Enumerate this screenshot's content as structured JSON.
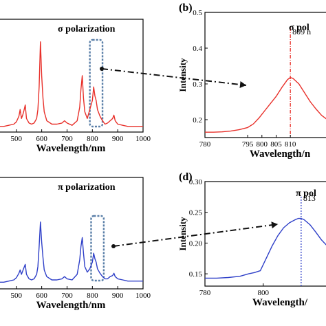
{
  "chart_data": [
    {
      "type": "line",
      "panel": "a",
      "label": "",
      "annotation": "σ  polarization",
      "xlabel": "Wavelength/nm",
      "ylabel": "",
      "xlim": [
        430,
        1000
      ],
      "ylim": [
        0,
        1
      ],
      "xticks": [
        "500",
        "600",
        "700",
        "800",
        "900",
        "1000"
      ],
      "xtick_values": [
        500,
        600,
        700,
        800,
        900,
        1000
      ],
      "color": "#e8302a",
      "highlight_range": [
        790,
        840
      ],
      "x": [
        430,
        450,
        470,
        490,
        500,
        510,
        515,
        520,
        525,
        530,
        535,
        540,
        550,
        560,
        570,
        580,
        585,
        590,
        595,
        600,
        605,
        610,
        620,
        640,
        660,
        680,
        690,
        700,
        720,
        740,
        750,
        755,
        760,
        765,
        770,
        780,
        790,
        800,
        805,
        810,
        815,
        820,
        830,
        840,
        850,
        860,
        870,
        880,
        885,
        890,
        900,
        920,
        940,
        960,
        980,
        1000
      ],
      "y": [
        0.05,
        0.05,
        0.06,
        0.07,
        0.09,
        0.14,
        0.2,
        0.12,
        0.15,
        0.19,
        0.24,
        0.12,
        0.08,
        0.07,
        0.08,
        0.12,
        0.2,
        0.4,
        0.8,
        0.5,
        0.3,
        0.18,
        0.1,
        0.07,
        0.07,
        0.08,
        0.1,
        0.08,
        0.06,
        0.1,
        0.22,
        0.38,
        0.5,
        0.3,
        0.18,
        0.12,
        0.2,
        0.28,
        0.4,
        0.32,
        0.28,
        0.2,
        0.14,
        0.1,
        0.07,
        0.08,
        0.1,
        0.12,
        0.15,
        0.1,
        0.07,
        0.06,
        0.05,
        0.05,
        0.05,
        0.05
      ]
    },
    {
      "type": "line",
      "panel": "b",
      "label": "(b)",
      "annotation": "σ  pol",
      "marker_label": "809 n",
      "marker_x": 810,
      "xlabel": "Wavelength/n",
      "ylabel": "Intensity",
      "xlim": [
        780,
        823
      ],
      "ylim": [
        0.15,
        0.5
      ],
      "xticks": [
        "780",
        "795",
        "800",
        "805",
        "810"
      ],
      "xtick_values": [
        780,
        795,
        800,
        805,
        810
      ],
      "yticks": [
        "0.2",
        "0.3",
        "0.4",
        "0.5"
      ],
      "ytick_values": [
        0.2,
        0.3,
        0.4,
        0.5
      ],
      "color": "#e8302a",
      "x": [
        780,
        783,
        786,
        789,
        792,
        795,
        797,
        799,
        801,
        803,
        805,
        807,
        809,
        810,
        811,
        813,
        815,
        817,
        819,
        821,
        823
      ],
      "y": [
        0.165,
        0.165,
        0.166,
        0.168,
        0.172,
        0.178,
        0.188,
        0.205,
        0.225,
        0.245,
        0.265,
        0.29,
        0.312,
        0.318,
        0.315,
        0.3,
        0.275,
        0.25,
        0.23,
        0.212,
        0.2
      ]
    },
    {
      "type": "line",
      "panel": "c",
      "label": "",
      "annotation": "π  polarization",
      "xlabel": "Wavelength/nm",
      "ylabel": "",
      "xlim": [
        430,
        1000
      ],
      "ylim": [
        0,
        1
      ],
      "xticks": [
        "500",
        "600",
        "700",
        "800",
        "900",
        "1000"
      ],
      "xtick_values": [
        500,
        600,
        700,
        800,
        900,
        1000
      ],
      "color": "#2e3fc8",
      "highlight_range": [
        795,
        845
      ],
      "x": [
        430,
        450,
        470,
        490,
        500,
        510,
        515,
        520,
        525,
        530,
        535,
        540,
        550,
        560,
        570,
        580,
        585,
        590,
        595,
        600,
        605,
        610,
        620,
        640,
        660,
        680,
        690,
        700,
        720,
        740,
        750,
        755,
        760,
        765,
        770,
        780,
        790,
        800,
        805,
        810,
        815,
        820,
        830,
        840,
        850,
        860,
        870,
        880,
        885,
        890,
        900,
        920,
        940,
        960,
        980,
        1000
      ],
      "y": [
        0.06,
        0.06,
        0.07,
        0.08,
        0.1,
        0.14,
        0.17,
        0.13,
        0.16,
        0.19,
        0.22,
        0.13,
        0.09,
        0.08,
        0.09,
        0.13,
        0.2,
        0.38,
        0.6,
        0.42,
        0.28,
        0.17,
        0.11,
        0.08,
        0.08,
        0.09,
        0.11,
        0.09,
        0.08,
        0.13,
        0.26,
        0.38,
        0.46,
        0.32,
        0.2,
        0.15,
        0.18,
        0.24,
        0.32,
        0.27,
        0.24,
        0.18,
        0.14,
        0.11,
        0.09,
        0.09,
        0.11,
        0.12,
        0.14,
        0.11,
        0.09,
        0.08,
        0.07,
        0.07,
        0.07,
        0.07
      ]
    },
    {
      "type": "line",
      "panel": "d",
      "label": "(d)",
      "annotation": "π  pol",
      "marker_label": "813",
      "marker_x": 813,
      "xlabel": "Wavelength/",
      "ylabel": "Intensity",
      "xlim": [
        780,
        822
      ],
      "ylim": [
        0.13,
        0.3
      ],
      "xticks": [
        "780",
        "800"
      ],
      "xtick_values": [
        780,
        800
      ],
      "yticks": [
        "0.15",
        "0.20",
        "0.25",
        "0.30"
      ],
      "ytick_values": [
        0.15,
        0.2,
        0.25,
        0.3
      ],
      "color": "#2e3fc8",
      "x": [
        780,
        784,
        788,
        792,
        795,
        797,
        799,
        801,
        803,
        805,
        807,
        809,
        811,
        812,
        813,
        814,
        816,
        818,
        820,
        822
      ],
      "y": [
        0.143,
        0.143,
        0.144,
        0.146,
        0.15,
        0.152,
        0.155,
        0.175,
        0.195,
        0.212,
        0.225,
        0.233,
        0.238,
        0.24,
        0.24,
        0.238,
        0.23,
        0.218,
        0.205,
        0.195
      ]
    }
  ]
}
